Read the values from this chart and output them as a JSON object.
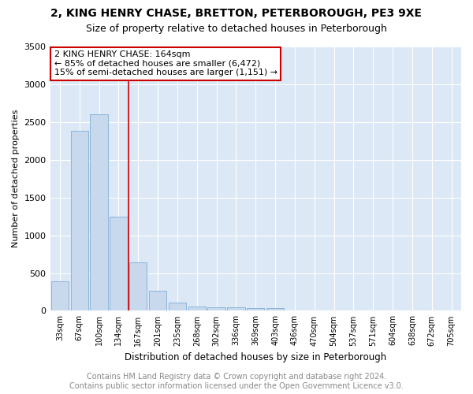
{
  "title1": "2, KING HENRY CHASE, BRETTON, PETERBOROUGH, PE3 9XE",
  "title2": "Size of property relative to detached houses in Peterborough",
  "xlabel": "Distribution of detached houses by size in Peterborough",
  "ylabel": "Number of detached properties",
  "bar_color": "#c8d9ee",
  "bar_edge_color": "#8ab4d8",
  "categories": [
    "33sqm",
    "67sqm",
    "100sqm",
    "134sqm",
    "167sqm",
    "201sqm",
    "235sqm",
    "268sqm",
    "302sqm",
    "336sqm",
    "369sqm",
    "403sqm",
    "436sqm",
    "470sqm",
    "504sqm",
    "537sqm",
    "571sqm",
    "604sqm",
    "638sqm",
    "672sqm",
    "705sqm"
  ],
  "values": [
    390,
    2380,
    2600,
    1250,
    640,
    265,
    105,
    55,
    50,
    45,
    40,
    35,
    0,
    0,
    0,
    0,
    0,
    0,
    0,
    0,
    0
  ],
  "ylim": [
    0,
    3500
  ],
  "yticks": [
    0,
    500,
    1000,
    1500,
    2000,
    2500,
    3000,
    3500
  ],
  "red_line_index": 3.5,
  "annotation_box_text": "2 KING HENRY CHASE: 164sqm\n← 85% of detached houses are smaller (6,472)\n15% of semi-detached houses are larger (1,151) →",
  "annotation_box_color": "#ffffff",
  "annotation_box_edge_color": "#cc0000",
  "property_line_color": "#cc0000",
  "footer1": "Contains HM Land Registry data © Crown copyright and database right 2024.",
  "footer2": "Contains public sector information licensed under the Open Government Licence v3.0.",
  "fig_bg_color": "#ffffff",
  "plot_bg_color": "#dce8f5",
  "title_fontsize": 10,
  "subtitle_fontsize": 9,
  "annotation_fontsize": 8,
  "footer_fontsize": 7,
  "bar_width": 0.9
}
